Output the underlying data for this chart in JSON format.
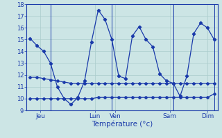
{
  "xlabel": "Température (°c)",
  "xlim": [
    -0.5,
    27.5
  ],
  "ylim": [
    9,
    18
  ],
  "yticks": [
    9,
    10,
    11,
    12,
    13,
    14,
    15,
    16,
    17,
    18
  ],
  "xtick_positions": [
    1.5,
    9.5,
    12.5,
    20.5,
    26.0
  ],
  "xtick_labels": [
    "Jeu",
    "Lun",
    "Ven",
    "Sam",
    "Dim"
  ],
  "vlines": [
    3,
    12,
    21,
    27
  ],
  "background_color": "#cce5e5",
  "grid_color": "#aacccc",
  "line_color": "#1a3aaa",
  "line1_x": [
    0,
    1,
    2,
    3,
    4,
    5,
    6,
    7,
    8,
    9,
    10,
    11,
    12,
    13,
    14,
    15,
    16,
    17,
    18,
    19,
    20,
    21,
    22,
    23,
    24,
    25,
    26,
    27
  ],
  "line1_y": [
    15.1,
    14.5,
    14.0,
    13.0,
    11.0,
    10.0,
    9.5,
    10.1,
    11.5,
    14.8,
    17.5,
    16.7,
    15.0,
    11.9,
    11.7,
    15.3,
    16.1,
    15.0,
    14.4,
    12.1,
    11.5,
    11.3,
    10.2,
    11.9,
    15.5,
    16.4,
    16.0,
    15.0
  ],
  "line2_x": [
    0,
    1,
    2,
    3,
    4,
    5,
    6,
    7,
    8,
    9,
    10,
    11,
    12,
    13,
    14,
    15,
    16,
    17,
    18,
    19,
    20,
    21,
    22,
    23,
    24,
    25,
    26,
    27
  ],
  "line2_y": [
    11.8,
    11.8,
    11.7,
    11.6,
    11.5,
    11.4,
    11.3,
    11.3,
    11.3,
    11.3,
    11.3,
    11.3,
    11.3,
    11.3,
    11.3,
    11.3,
    11.3,
    11.3,
    11.3,
    11.3,
    11.3,
    11.3,
    11.3,
    11.3,
    11.3,
    11.3,
    11.3,
    11.3
  ],
  "line3_x": [
    0,
    1,
    2,
    3,
    4,
    5,
    6,
    7,
    8,
    9,
    10,
    11,
    12,
    13,
    14,
    15,
    16,
    17,
    18,
    19,
    20,
    21,
    22,
    23,
    24,
    25,
    26,
    27
  ],
  "line3_y": [
    10.0,
    10.0,
    10.0,
    10.0,
    10.0,
    10.0,
    10.0,
    10.0,
    10.0,
    10.0,
    10.1,
    10.1,
    10.1,
    10.1,
    10.1,
    10.1,
    10.1,
    10.1,
    10.1,
    10.1,
    10.1,
    10.1,
    10.1,
    10.1,
    10.1,
    10.1,
    10.1,
    10.4
  ]
}
